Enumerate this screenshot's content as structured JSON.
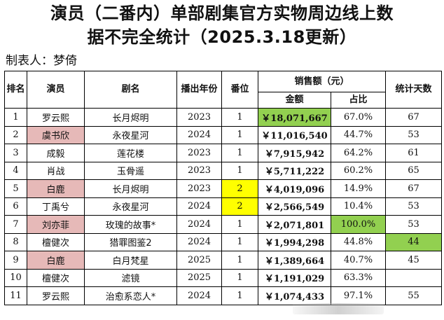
{
  "title_line1": "演员（二番内）单部剧集官方实物周边线上数",
  "title_line2": "据不完全统计（2025.3.18更新）",
  "maker": "制表人：梦倚",
  "headers": {
    "rank": "排名",
    "actor": "演员",
    "drama": "剧名",
    "year": "播出年份",
    "position": "番位",
    "sales": "销售额（元）",
    "amount": "金额",
    "share": "占比",
    "days": "统计天数"
  },
  "rows": [
    {
      "rank": "1",
      "actor": "罗云熙",
      "drama": "长月烬明",
      "year": "2023",
      "position": "1",
      "amount": "￥18,071,667",
      "share": "67.0%",
      "days": "67"
    },
    {
      "rank": "2",
      "actor": "虞书欣",
      "drama": "永夜星河",
      "year": "2024",
      "position": "1",
      "amount": "￥11,016,540",
      "share": "44.7%",
      "days": "53"
    },
    {
      "rank": "3",
      "actor": "成毅",
      "drama": "莲花楼",
      "year": "2023",
      "position": "1",
      "amount": "￥7,915,942",
      "share": "64.2%",
      "days": "61"
    },
    {
      "rank": "4",
      "actor": "肖战",
      "drama": "玉骨遥",
      "year": "2023",
      "position": "1",
      "amount": "￥5,711,222",
      "share": "60.2%",
      "days": "65"
    },
    {
      "rank": "5",
      "actor": "白鹿",
      "drama": "长月烬明",
      "year": "2023",
      "position": "2",
      "amount": "￥4,019,096",
      "share": "14.9%",
      "days": "67"
    },
    {
      "rank": "6",
      "actor": "丁禹兮",
      "drama": "永夜星河",
      "year": "2024",
      "position": "2",
      "amount": "￥2,566,549",
      "share": "10.4%",
      "days": "53"
    },
    {
      "rank": "7",
      "actor": "刘亦菲",
      "drama": "玫瑰的故事*",
      "year": "2024",
      "position": "1",
      "amount": "￥2,071,801",
      "share": "100.0%",
      "days": "53"
    },
    {
      "rank": "8",
      "actor": "檀健次",
      "drama": "猎罪图鉴2",
      "year": "2024",
      "position": "1",
      "amount": "￥1,994,298",
      "share": "44.8%",
      "days": "44"
    },
    {
      "rank": "9",
      "actor": "白鹿",
      "drama": "白月梵星",
      "year": "2025",
      "position": "1",
      "amount": "￥1,389,664",
      "share": "40.7%",
      "days": "45"
    },
    {
      "rank": "10",
      "actor": "檀健次",
      "drama": "滤镜",
      "year": "2025",
      "position": "1",
      "amount": "￥1,191,029",
      "share": "63.3%",
      "days": ""
    },
    {
      "rank": "11",
      "actor": "罗云熙",
      "drama": "治愈系恋人*",
      "year": "2024",
      "position": "1",
      "amount": "￥1,074,433",
      "share": "97.1%",
      "days": "55"
    }
  ],
  "colors": {
    "pink": "#e6b9b8",
    "yellow": "#ffff00",
    "green": "#92d050"
  }
}
